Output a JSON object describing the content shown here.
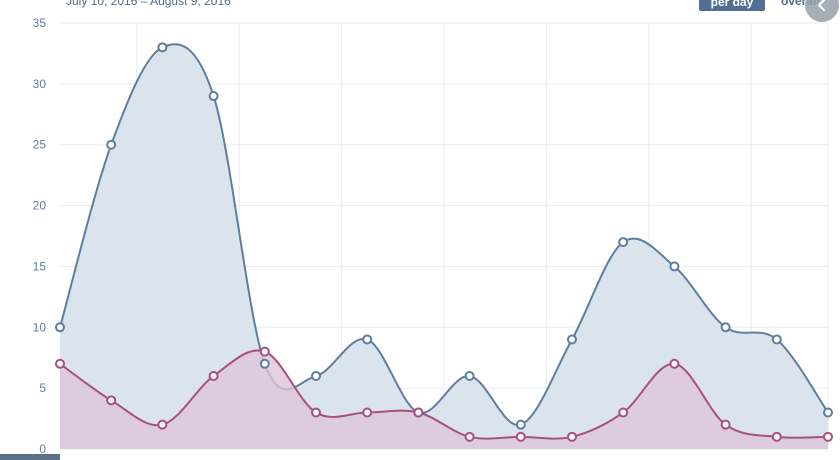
{
  "header": {
    "date_range": "July 10, 2016 – August 9, 2016",
    "toggle_active": "per day",
    "toggle_other": "overall"
  },
  "chart_data": {
    "type": "area",
    "title": "",
    "xlabel": "",
    "ylabel": "",
    "ylim": [
      0,
      35
    ],
    "yticks": [
      0,
      5,
      10,
      15,
      20,
      25,
      30,
      35
    ],
    "grid": true,
    "legend": "none",
    "x": [
      1,
      2,
      3,
      4,
      5,
      6,
      7,
      8,
      9,
      10,
      11,
      12,
      13,
      14,
      15,
      16
    ],
    "series": [
      {
        "color": "#5e7ea1",
        "fill": "#d5dfe9",
        "values": [
          10,
          25,
          33,
          29,
          7,
          6,
          9,
          3,
          6,
          2,
          9,
          17,
          15,
          10,
          9,
          3
        ]
      },
      {
        "color": "#a8517e",
        "fill": "#dcc5d9",
        "values": [
          7,
          4,
          2,
          6,
          8,
          3,
          3,
          3,
          1,
          1,
          1,
          3,
          7,
          2,
          1,
          1
        ]
      }
    ]
  }
}
